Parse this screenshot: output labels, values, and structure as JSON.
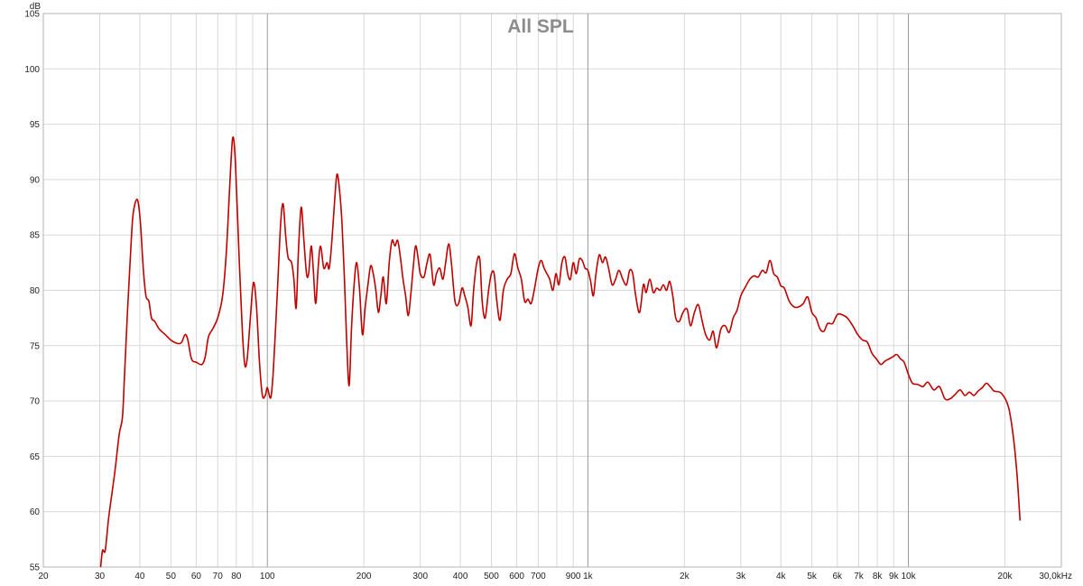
{
  "chart_data": {
    "type": "line",
    "title": "All SPL",
    "ylabel": "dB",
    "xlabel": "",
    "x_scale": "log",
    "xlim": [
      20,
      30000
    ],
    "ylim": [
      55,
      105
    ],
    "grid": true,
    "line_color": "#c00000",
    "y_ticks": [
      55,
      60,
      65,
      70,
      75,
      80,
      85,
      90,
      95,
      100,
      105
    ],
    "x_ticks": [
      {
        "value": 20,
        "label": "20"
      },
      {
        "value": 30,
        "label": "30"
      },
      {
        "value": 40,
        "label": "40"
      },
      {
        "value": 50,
        "label": "50"
      },
      {
        "value": 60,
        "label": "60"
      },
      {
        "value": 70,
        "label": "70"
      },
      {
        "value": 80,
        "label": "80"
      },
      {
        "value": 100,
        "label": "100"
      },
      {
        "value": 200,
        "label": "200"
      },
      {
        "value": 300,
        "label": "300"
      },
      {
        "value": 400,
        "label": "400"
      },
      {
        "value": 500,
        "label": "500"
      },
      {
        "value": 600,
        "label": "600"
      },
      {
        "value": 700,
        "label": "700"
      },
      {
        "value": 900,
        "label": "900"
      },
      {
        "value": 1000,
        "label": "1k"
      },
      {
        "value": 2000,
        "label": "2k"
      },
      {
        "value": 3000,
        "label": "3k"
      },
      {
        "value": 4000,
        "label": "4k"
      },
      {
        "value": 5000,
        "label": "5k"
      },
      {
        "value": 6000,
        "label": "6k"
      },
      {
        "value": 7000,
        "label": "7k"
      },
      {
        "value": 8000,
        "label": "8k"
      },
      {
        "value": 9000,
        "label": "9k"
      },
      {
        "value": 10000,
        "label": "10k"
      },
      {
        "value": 20000,
        "label": "20k"
      },
      {
        "value": 30000,
        "label": "30,0kHz"
      }
    ],
    "x_gridlines": [
      30,
      40,
      50,
      60,
      70,
      80,
      90,
      100,
      200,
      300,
      400,
      500,
      600,
      700,
      800,
      900,
      1000,
      2000,
      3000,
      4000,
      5000,
      6000,
      7000,
      8000,
      9000,
      10000,
      20000
    ],
    "x_major_gridlines": [
      100,
      1000,
      10000
    ],
    "series": [
      {
        "points": [
          [
            30.2,
            55.0
          ],
          [
            30.6,
            56.5
          ],
          [
            31.2,
            56.5
          ],
          [
            32.0,
            59.5
          ],
          [
            33.4,
            63.5
          ],
          [
            34.5,
            67.0
          ],
          [
            35.3,
            68.5
          ],
          [
            35.8,
            72.0
          ],
          [
            36.6,
            78.0
          ],
          [
            37.3,
            82.5
          ],
          [
            38.0,
            86.5
          ],
          [
            38.8,
            88.0
          ],
          [
            39.5,
            88.0
          ],
          [
            40.2,
            86.0
          ],
          [
            41.0,
            82.0
          ],
          [
            41.8,
            79.5
          ],
          [
            42.7,
            79.0
          ],
          [
            43.5,
            77.5
          ],
          [
            44.5,
            77.2
          ],
          [
            46.0,
            76.5
          ],
          [
            48.0,
            76.0
          ],
          [
            50.0,
            75.5
          ],
          [
            52.5,
            75.2
          ],
          [
            54.0,
            75.3
          ],
          [
            55.4,
            76.0
          ],
          [
            56.5,
            75.5
          ],
          [
            58.0,
            73.8
          ],
          [
            60.0,
            73.5
          ],
          [
            62.5,
            73.3
          ],
          [
            64.0,
            74.0
          ],
          [
            65.5,
            75.8
          ],
          [
            67.5,
            76.5
          ],
          [
            70.0,
            77.5
          ],
          [
            72.5,
            79.5
          ],
          [
            74.5,
            83.5
          ],
          [
            76.5,
            90.0
          ],
          [
            78.0,
            93.8
          ],
          [
            79.5,
            91.5
          ],
          [
            81.5,
            83.5
          ],
          [
            83.5,
            76.5
          ],
          [
            85.0,
            73.3
          ],
          [
            86.5,
            73.8
          ],
          [
            88.5,
            77.5
          ],
          [
            90.5,
            80.7
          ],
          [
            92.5,
            78.5
          ],
          [
            94.5,
            73.5
          ],
          [
            96.5,
            70.5
          ],
          [
            98.5,
            70.5
          ],
          [
            100.0,
            71.2
          ],
          [
            102.5,
            70.3
          ],
          [
            104.5,
            73.0
          ],
          [
            107.5,
            80.0
          ],
          [
            110.0,
            86.0
          ],
          [
            112.0,
            87.8
          ],
          [
            114.0,
            85.0
          ],
          [
            116.0,
            83.0
          ],
          [
            119.0,
            82.5
          ],
          [
            121.0,
            81.0
          ],
          [
            123.0,
            78.4
          ],
          [
            125.0,
            83.5
          ],
          [
            127.5,
            87.5
          ],
          [
            130.0,
            84.5
          ],
          [
            132.5,
            81.5
          ],
          [
            134.5,
            81.5
          ],
          [
            137.0,
            84.0
          ],
          [
            139.0,
            82.0
          ],
          [
            141.5,
            78.8
          ],
          [
            144.0,
            82.0
          ],
          [
            146.5,
            84.0
          ],
          [
            150.0,
            82.0
          ],
          [
            153.5,
            82.5
          ],
          [
            156.0,
            82.0
          ],
          [
            159.0,
            84.5
          ],
          [
            162.5,
            88.5
          ],
          [
            165.0,
            90.5
          ],
          [
            168.0,
            89.0
          ],
          [
            171.0,
            86.0
          ],
          [
            174.0,
            81.0
          ],
          [
            177.0,
            75.0
          ],
          [
            180.0,
            71.4
          ],
          [
            183.0,
            76.5
          ],
          [
            186.5,
            80.5
          ],
          [
            190.0,
            82.5
          ],
          [
            194.0,
            80.0
          ],
          [
            198.0,
            76.0
          ],
          [
            202.0,
            78.5
          ],
          [
            206.0,
            80.5
          ],
          [
            210.0,
            82.2
          ],
          [
            214.0,
            81.5
          ],
          [
            218.0,
            80.0
          ],
          [
            222.0,
            78.0
          ],
          [
            226.0,
            79.5
          ],
          [
            230.0,
            81.2
          ],
          [
            235.0,
            78.8
          ],
          [
            240.0,
            82.5
          ],
          [
            245.0,
            84.5
          ],
          [
            250.0,
            84.0
          ],
          [
            255.0,
            84.5
          ],
          [
            260.0,
            83.0
          ],
          [
            265.0,
            81.0
          ],
          [
            270.0,
            79.5
          ],
          [
            275.0,
            77.7
          ],
          [
            280.0,
            79.5
          ],
          [
            285.0,
            82.0
          ],
          [
            290.0,
            84.0
          ],
          [
            295.0,
            83.0
          ],
          [
            300.0,
            81.5
          ],
          [
            308.0,
            81.2
          ],
          [
            315.0,
            82.5
          ],
          [
            322.0,
            83.2
          ],
          [
            330.0,
            80.5
          ],
          [
            337.0,
            81.5
          ],
          [
            345.0,
            82.0
          ],
          [
            353.0,
            81.0
          ],
          [
            360.0,
            82.5
          ],
          [
            368.0,
            84.2
          ],
          [
            375.0,
            82.5
          ],
          [
            385.0,
            79.0
          ],
          [
            395.0,
            78.8
          ],
          [
            405.0,
            80.2
          ],
          [
            413.0,
            79.5
          ],
          [
            422.0,
            78.5
          ],
          [
            432.0,
            76.8
          ],
          [
            440.0,
            80.0
          ],
          [
            450.0,
            82.5
          ],
          [
            460.0,
            82.8
          ],
          [
            468.0,
            79.0
          ],
          [
            478.0,
            77.5
          ],
          [
            490.0,
            80.0
          ],
          [
            500.0,
            81.5
          ],
          [
            510.0,
            81.5
          ],
          [
            520.0,
            79.0
          ],
          [
            532.0,
            77.3
          ],
          [
            545.0,
            80.0
          ],
          [
            560.0,
            81.0
          ],
          [
            575.0,
            81.5
          ],
          [
            590.0,
            83.3
          ],
          [
            605.0,
            82.0
          ],
          [
            620.0,
            81.0
          ],
          [
            635.0,
            79.0
          ],
          [
            650.0,
            79.2
          ],
          [
            665.0,
            78.8
          ],
          [
            680.0,
            80.0
          ],
          [
            700.0,
            82.0
          ],
          [
            715.0,
            82.7
          ],
          [
            730.0,
            82.0
          ],
          [
            745.0,
            81.5
          ],
          [
            760.0,
            81.0
          ],
          [
            778.0,
            80.0
          ],
          [
            795.0,
            81.5
          ],
          [
            812.0,
            80.5
          ],
          [
            830.0,
            82.5
          ],
          [
            848.0,
            83.0
          ],
          [
            865.0,
            81.5
          ],
          [
            882.0,
            81.0
          ],
          [
            900.0,
            82.5
          ],
          [
            920.0,
            81.5
          ],
          [
            940.0,
            82.8
          ],
          [
            960.0,
            82.7
          ],
          [
            980.0,
            82.0
          ],
          [
            1000.0,
            81.8
          ],
          [
            1020.0,
            80.8
          ],
          [
            1040.0,
            79.5
          ],
          [
            1060.0,
            81.5
          ],
          [
            1085.0,
            83.2
          ],
          [
            1110.0,
            82.5
          ],
          [
            1135.0,
            83.0
          ],
          [
            1160.0,
            82.0
          ],
          [
            1190.0,
            80.5
          ],
          [
            1220.0,
            81.0
          ],
          [
            1250.0,
            81.8
          ],
          [
            1285.0,
            81.0
          ],
          [
            1320.0,
            80.5
          ],
          [
            1350.0,
            81.8
          ],
          [
            1380.0,
            81.5
          ],
          [
            1410.0,
            79.5
          ],
          [
            1450.0,
            78.0
          ],
          [
            1490.0,
            80.5
          ],
          [
            1520.0,
            79.8
          ],
          [
            1560.0,
            81.0
          ],
          [
            1600.0,
            79.8
          ],
          [
            1640.0,
            80.2
          ],
          [
            1680.0,
            80.0
          ],
          [
            1720.0,
            80.5
          ],
          [
            1760.0,
            80.0
          ],
          [
            1800.0,
            80.8
          ],
          [
            1840.0,
            79.5
          ],
          [
            1880.0,
            77.5
          ],
          [
            1930.0,
            77.2
          ],
          [
            1980.0,
            78.0
          ],
          [
            2040.0,
            78.3
          ],
          [
            2090.0,
            76.8
          ],
          [
            2150.0,
            78.0
          ],
          [
            2210.0,
            78.7
          ],
          [
            2270.0,
            77.3
          ],
          [
            2330.0,
            76.0
          ],
          [
            2400.0,
            75.5
          ],
          [
            2460.0,
            76.3
          ],
          [
            2520.0,
            74.8
          ],
          [
            2600.0,
            76.5
          ],
          [
            2680.0,
            76.8
          ],
          [
            2760.0,
            76.2
          ],
          [
            2840.0,
            77.5
          ],
          [
            2920.0,
            78.2
          ],
          [
            3000.0,
            79.5
          ],
          [
            3100.0,
            80.3
          ],
          [
            3200.0,
            81.0
          ],
          [
            3300.0,
            81.3
          ],
          [
            3400.0,
            81.2
          ],
          [
            3500.0,
            81.8
          ],
          [
            3600.0,
            81.6
          ],
          [
            3700.0,
            82.7
          ],
          [
            3800.0,
            81.5
          ],
          [
            3900.0,
            81.2
          ],
          [
            4000.0,
            80.4
          ],
          [
            4100.0,
            80.2
          ],
          [
            4250.0,
            79.0
          ],
          [
            4400.0,
            78.5
          ],
          [
            4550.0,
            78.5
          ],
          [
            4700.0,
            78.8
          ],
          [
            4850.0,
            79.4
          ],
          [
            5000.0,
            78.0
          ],
          [
            5150.0,
            77.5
          ],
          [
            5300.0,
            76.5
          ],
          [
            5450.0,
            76.3
          ],
          [
            5600.0,
            77.0
          ],
          [
            5800.0,
            77.0
          ],
          [
            6000.0,
            77.8
          ],
          [
            6200.0,
            77.8
          ],
          [
            6450.0,
            77.5
          ],
          [
            6700.0,
            76.8
          ],
          [
            6950.0,
            76.0
          ],
          [
            7200.0,
            75.5
          ],
          [
            7450.0,
            75.3
          ],
          [
            7700.0,
            74.3
          ],
          [
            7950.0,
            73.8
          ],
          [
            8200.0,
            73.3
          ],
          [
            8450.0,
            73.6
          ],
          [
            8700.0,
            73.8
          ],
          [
            8950.0,
            74.0
          ],
          [
            9200.0,
            74.2
          ],
          [
            9450.0,
            73.8
          ],
          [
            9700.0,
            73.5
          ],
          [
            10000.0,
            72.4
          ],
          [
            10300.0,
            71.6
          ],
          [
            10700.0,
            71.5
          ],
          [
            11100.0,
            71.3
          ],
          [
            11500.0,
            71.7
          ],
          [
            12000.0,
            71.0
          ],
          [
            12500.0,
            71.3
          ],
          [
            13000.0,
            70.2
          ],
          [
            13500.0,
            70.2
          ],
          [
            14000.0,
            70.6
          ],
          [
            14500.0,
            71.0
          ],
          [
            15000.0,
            70.5
          ],
          [
            15500.0,
            70.8
          ],
          [
            16000.0,
            70.5
          ],
          [
            16500.0,
            70.9
          ],
          [
            17000.0,
            71.2
          ],
          [
            17500.0,
            71.6
          ],
          [
            18000.0,
            71.3
          ],
          [
            18500.0,
            70.9
          ],
          [
            19500.0,
            70.7
          ],
          [
            20500.0,
            69.5
          ],
          [
            21200.0,
            67.0
          ],
          [
            21800.0,
            63.5
          ],
          [
            22300.0,
            59.2
          ]
        ]
      }
    ]
  }
}
